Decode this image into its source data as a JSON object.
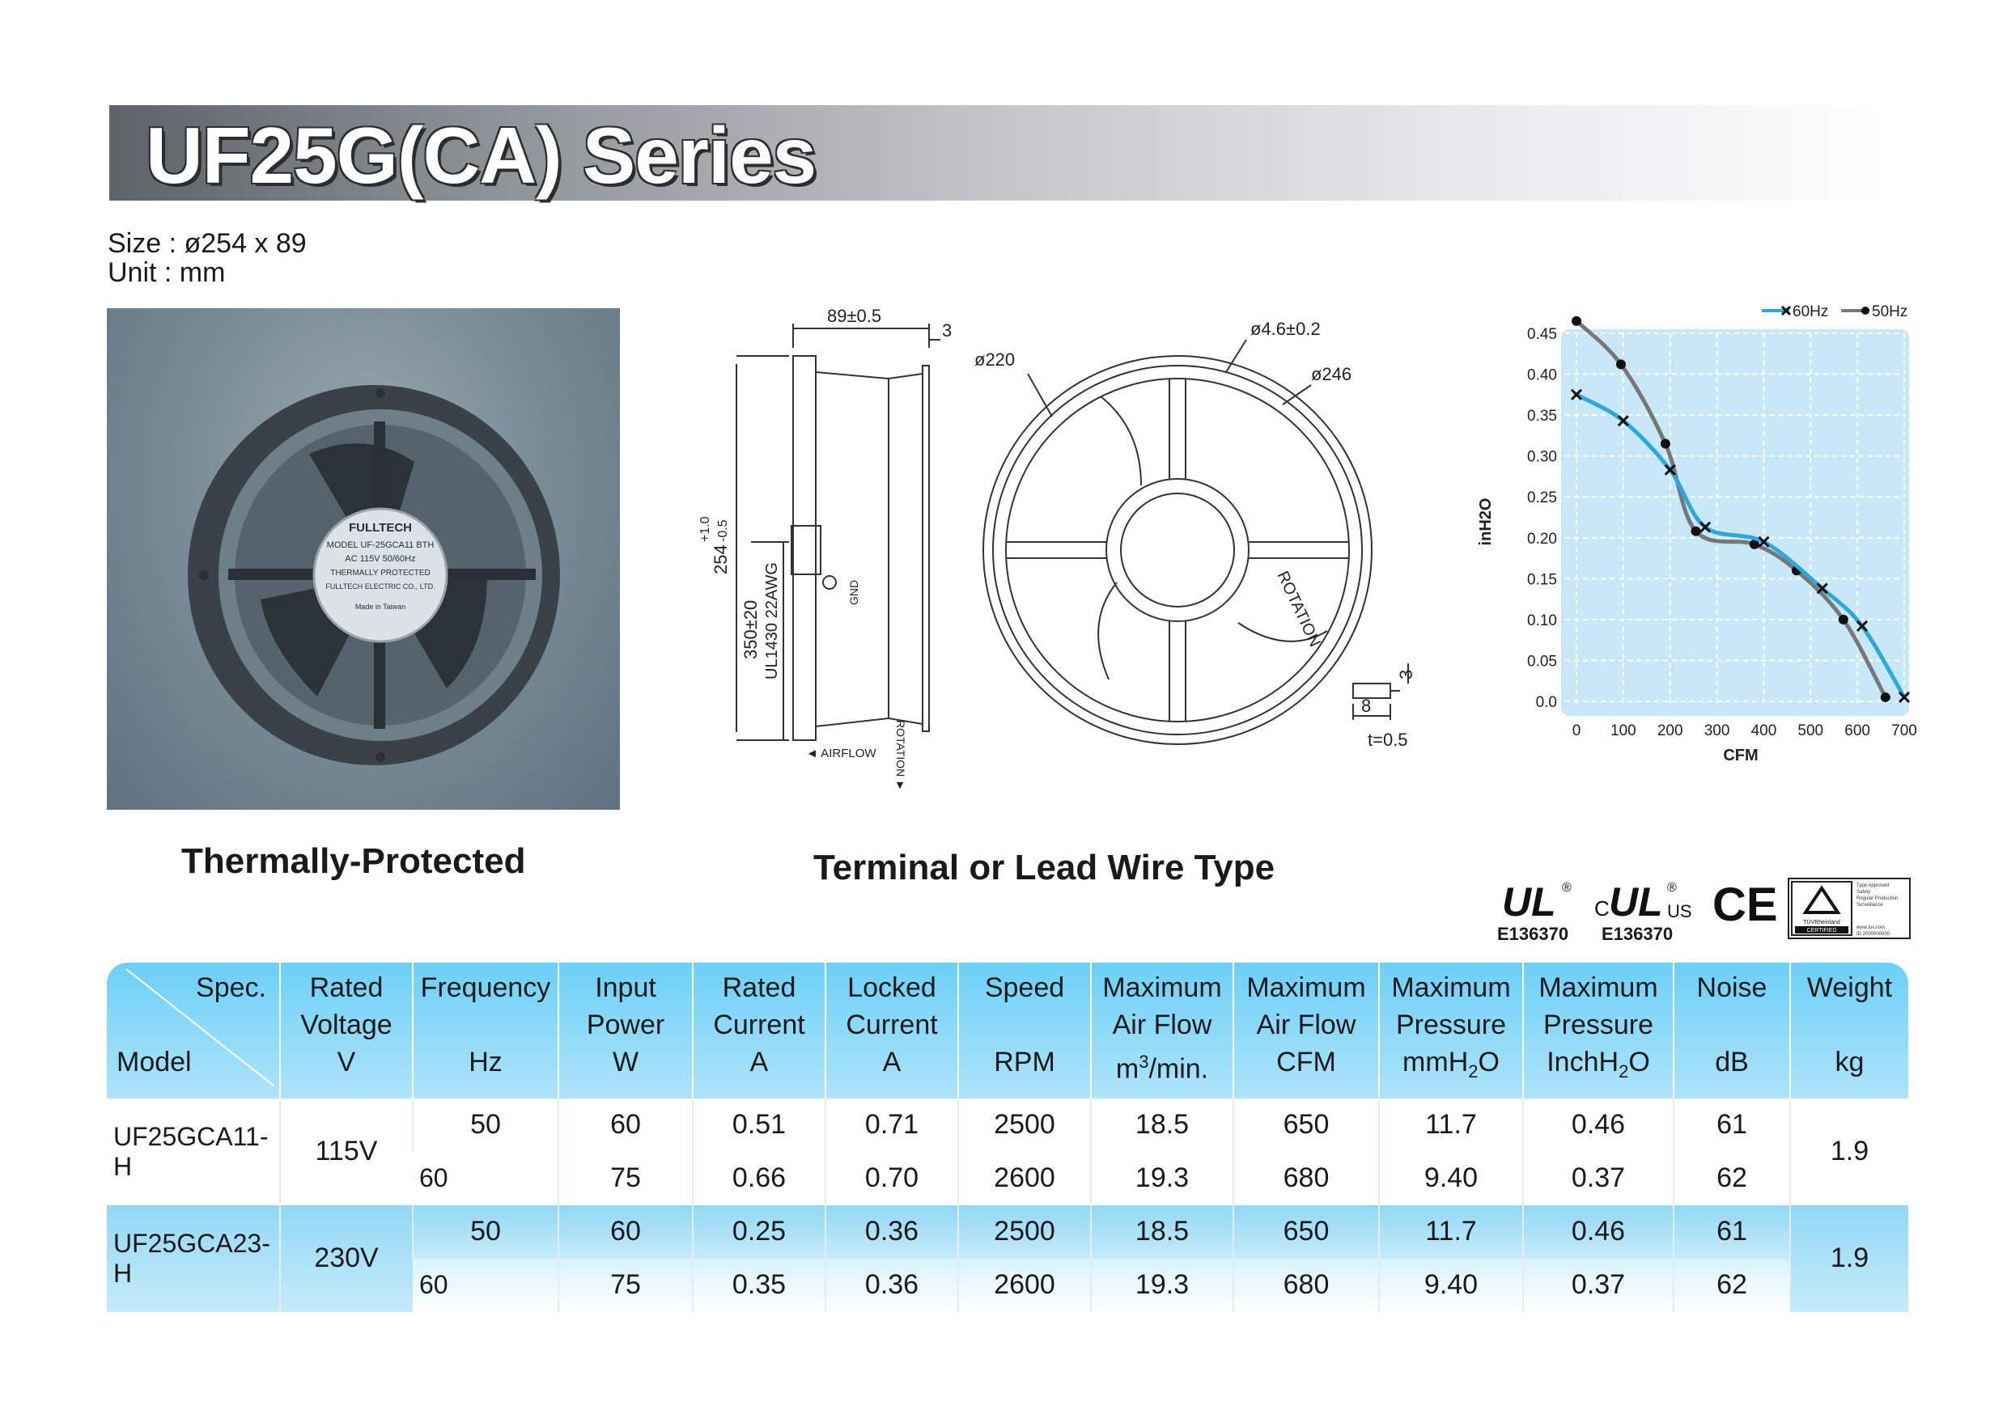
{
  "title": "UF25G(CA) Series",
  "size_label": "Size : ø254 x 89",
  "unit_label": "Unit : mm",
  "captions": {
    "left": "Thermally-Protected",
    "center": "Terminal or Lead Wire Type"
  },
  "drawing": {
    "side": {
      "width_dim": "89±0.5",
      "flange_dim": "3",
      "diameter_dim": "254",
      "tol_plus": "+1.0",
      "tol_minus": "-0.5",
      "lead_len": "350±20",
      "lead_spec": "UL1430 22AWG",
      "gnd": "GND",
      "airflow": "◄ AIRFLOW",
      "rotation": "ROTATION ►"
    },
    "front": {
      "d220": "ø220",
      "hole": "ø4.6±0.2",
      "d246": "ø246",
      "rotation": "ROTATION"
    },
    "terminal": {
      "h": "3",
      "w": "8",
      "t": "t=0.5"
    }
  },
  "photo_label": {
    "brand": "FULLTECH",
    "model": "MODEL UF-25GCA11 BTH",
    "ac": "AC 115V  50/60Hz",
    "mark": "THERMALLY PROTECTED",
    "maker": "FULLTECH ELECTRIC CO., LTD.",
    "origin": "Made in Taiwan"
  },
  "chart_data": {
    "type": "line",
    "xlabel": "CFM",
    "ylabel": "inH2O",
    "xlim": [
      0,
      700
    ],
    "ylim": [
      0,
      0.45
    ],
    "xticks": [
      "0",
      "100",
      "200",
      "300",
      "400",
      "500",
      "600",
      "700"
    ],
    "yticks": [
      "0.0",
      "0.05",
      "0.10",
      "0.15",
      "0.20",
      "0.25",
      "0.30",
      "0.35",
      "0.40",
      "0.45"
    ],
    "grid": true,
    "legend_position": "top-right",
    "series": [
      {
        "name": "60Hz",
        "color": "#2aa9e0",
        "marker": "x",
        "x": [
          0,
          100,
          200,
          275,
          400,
          525,
          610,
          700
        ],
        "y": [
          0.375,
          0.343,
          0.283,
          0.213,
          0.195,
          0.138,
          0.092,
          0.005
        ]
      },
      {
        "name": "50Hz",
        "color": "#777777",
        "marker": "dot",
        "x": [
          0,
          95,
          190,
          255,
          380,
          470,
          570,
          660
        ],
        "y": [
          0.465,
          0.412,
          0.315,
          0.208,
          0.192,
          0.16,
          0.1,
          0.005
        ]
      }
    ]
  },
  "certifications": [
    {
      "name": "UL",
      "code": "E136370"
    },
    {
      "name": "cULus",
      "code": "E136370"
    },
    {
      "name": "CE",
      "code": ""
    },
    {
      "name": "TUV Rheinland",
      "code": ""
    }
  ],
  "cert_marks": {
    "ul": "UL",
    "reg": "®",
    "c": "C",
    "us": "US",
    "ce": "CE",
    "tuv_brand": "TÜVRheinland",
    "tuv_cert": "CERTIFIED",
    "tuv_text": [
      "Type Approved",
      "Safety",
      "Regular Production",
      "Surveillance"
    ],
    "tuv_url": "www.tuv.com",
    "tuv_id": "ID 2000000000"
  },
  "table": {
    "corner_top": "Spec.",
    "corner_bottom": "Model",
    "headers": [
      {
        "top": "Rated",
        "mid": "Voltage",
        "unit": "V"
      },
      {
        "top": "Frequency",
        "mid": "",
        "unit": "Hz"
      },
      {
        "top": "Input",
        "mid": "Power",
        "unit": "W"
      },
      {
        "top": "Rated",
        "mid": "Current",
        "unit": "A"
      },
      {
        "top": "Locked",
        "mid": "Current",
        "unit": "A"
      },
      {
        "top": "Speed",
        "mid": "",
        "unit": "RPM"
      },
      {
        "top": "Maximum",
        "mid": "Air Flow",
        "unit": "m3/min."
      },
      {
        "top": "Maximum",
        "mid": "Air Flow",
        "unit": "CFM"
      },
      {
        "top": "Maximum",
        "mid": "Pressure",
        "unit": "mmH2O"
      },
      {
        "top": "Maximum",
        "mid": "Pressure",
        "unit": "InchH2O"
      },
      {
        "top": "Noise",
        "mid": "",
        "unit": "dB"
      },
      {
        "top": "Weight",
        "mid": "",
        "unit": "kg"
      }
    ],
    "models": [
      {
        "model": "UF25GCA11-H",
        "voltage": "115V",
        "weight": "1.9",
        "rows": [
          {
            "freq": "50",
            "power": "60",
            "current": "0.51",
            "locked": "0.71",
            "speed": "2500",
            "m3": "18.5",
            "cfm": "650",
            "mmh2o": "11.7",
            "inh2o": "0.46",
            "noise": "61"
          },
          {
            "freq": "60",
            "power": "75",
            "current": "0.66",
            "locked": "0.70",
            "speed": "2600",
            "m3": "19.3",
            "cfm": "680",
            "mmh2o": "9.40",
            "inh2o": "0.37",
            "noise": "62"
          }
        ]
      },
      {
        "model": "UF25GCA23-H",
        "voltage": "230V",
        "weight": "1.9",
        "rows": [
          {
            "freq": "50",
            "power": "60",
            "current": "0.25",
            "locked": "0.36",
            "speed": "2500",
            "m3": "18.5",
            "cfm": "650",
            "mmh2o": "11.7",
            "inh2o": "0.46",
            "noise": "61"
          },
          {
            "freq": "60",
            "power": "75",
            "current": "0.35",
            "locked": "0.36",
            "speed": "2600",
            "m3": "19.3",
            "cfm": "680",
            "mmh2o": "9.40",
            "inh2o": "0.37",
            "noise": "62"
          }
        ]
      }
    ]
  }
}
